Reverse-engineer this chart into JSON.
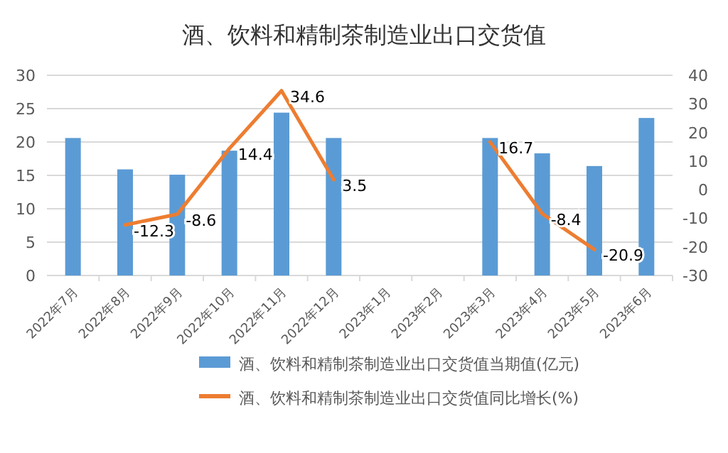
{
  "chart_data": {
    "type": "bar",
    "title": "酒、饮料和精制茶制造业出口交货值",
    "categories": [
      "2022年7月",
      "2022年8月",
      "2022年9月",
      "2022年10月",
      "2022年11月",
      "2022年12月",
      "2023年1月",
      "2023年2月",
      "2023年3月",
      "2023年4月",
      "2023年5月",
      "2023年6月"
    ],
    "series": [
      {
        "name": "酒、饮料和精制茶制造业出口交货值当期值(亿元)",
        "color": "#5b9bd5",
        "values": [
          20.6,
          15.9,
          15.1,
          18.7,
          24.4,
          20.6,
          null,
          null,
          20.6,
          18.3,
          16.4,
          23.6
        ]
      },
      {
        "name": "酒、饮料和精制茶制造业出口交货值同比增长(%)",
        "type": "line",
        "axis": "y2",
        "color": "#ed7d31",
        "marker": "none",
        "line_style": "solid",
        "data_labels": true,
        "values": [
          null,
          -12.3,
          -8.6,
          14.4,
          34.6,
          3.5,
          null,
          null,
          16.7,
          -8.4,
          -20.9,
          null
        ]
      }
    ],
    "ylim": [
      0,
      30
    ],
    "yticks": [
      0,
      5,
      10,
      15,
      20,
      25,
      30
    ],
    "y2lim": [
      -30,
      40
    ],
    "y2ticks": [
      -30,
      -20,
      -10,
      0,
      10,
      20,
      30,
      40
    ],
    "grid": "y",
    "legend": "bottom"
  }
}
